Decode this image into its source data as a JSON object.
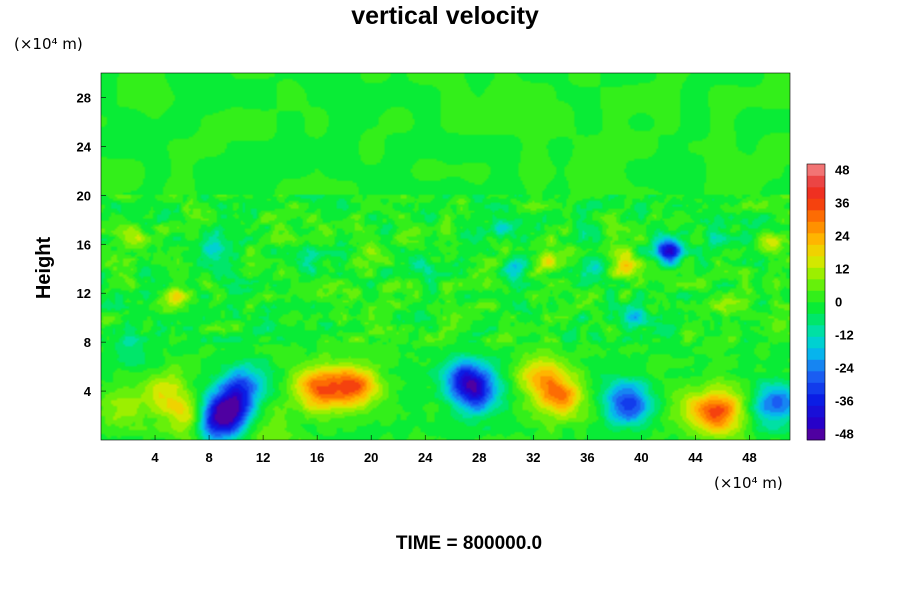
{
  "chart_data": {
    "type": "heatmap",
    "title": "vertical velocity",
    "xlabel": "",
    "ylabel": "Height",
    "x_unit": "(×10⁴ m)",
    "y_unit": "(×10⁴ m)",
    "footer": "TIME = 800000.0",
    "xlim": [
      0,
      51
    ],
    "ylim": [
      0,
      30
    ],
    "x_ticks": [
      4,
      8,
      12,
      16,
      20,
      24,
      28,
      32,
      36,
      40,
      44,
      48
    ],
    "y_ticks": [
      4,
      8,
      12,
      16,
      20,
      24,
      28
    ],
    "colorbar": {
      "min": -48,
      "max": 48,
      "step": 4,
      "tick_labels": [
        48,
        36,
        24,
        12,
        0,
        -12,
        -24,
        -36,
        -48
      ]
    },
    "background_value": 0,
    "features": [
      {
        "x": 16.0,
        "y": 4.2,
        "value": 26
      },
      {
        "x": 19.0,
        "y": 4.4,
        "value": 27
      },
      {
        "x": 17.5,
        "y": 4.5,
        "value": 12
      },
      {
        "x": 4.5,
        "y": 3.8,
        "value": 16
      },
      {
        "x": 6.5,
        "y": 1.8,
        "value": 18
      },
      {
        "x": 1.5,
        "y": 3.0,
        "value": 10
      },
      {
        "x": 9.5,
        "y": 2.5,
        "value": -36
      },
      {
        "x": 8.5,
        "y": 1.5,
        "value": -30
      },
      {
        "x": 10.5,
        "y": 4.5,
        "value": -24
      },
      {
        "x": 27.0,
        "y": 5.0,
        "value": -30
      },
      {
        "x": 28.0,
        "y": 3.8,
        "value": -26
      },
      {
        "x": 34.0,
        "y": 3.6,
        "value": 26
      },
      {
        "x": 32.5,
        "y": 5.2,
        "value": 18
      },
      {
        "x": 39.0,
        "y": 3.0,
        "value": -32
      },
      {
        "x": 46.0,
        "y": 2.3,
        "value": 25
      },
      {
        "x": 44.5,
        "y": 2.3,
        "value": 18
      },
      {
        "x": 50.0,
        "y": 3.0,
        "value": -26
      },
      {
        "x": 12.5,
        "y": 1.0,
        "value": 8
      },
      {
        "x": 42.0,
        "y": 15.5,
        "value": -38
      },
      {
        "x": 38.8,
        "y": 14.3,
        "value": 20
      },
      {
        "x": 5.5,
        "y": 11.5,
        "value": 14
      },
      {
        "x": 33.0,
        "y": 14.7,
        "value": 14
      },
      {
        "x": 49.5,
        "y": 16.0,
        "value": 12
      },
      {
        "x": 46.5,
        "y": 11.0,
        "value": 10
      },
      {
        "x": 30.5,
        "y": 14.0,
        "value": -18
      },
      {
        "x": 36.5,
        "y": 14.0,
        "value": -16
      },
      {
        "x": 39.5,
        "y": 10.0,
        "value": -16
      },
      {
        "x": 29.5,
        "y": 17.5,
        "value": -14
      },
      {
        "x": 8.5,
        "y": 16.0,
        "value": -14
      },
      {
        "x": 15.5,
        "y": 14.5,
        "value": -12
      },
      {
        "x": 45.5,
        "y": 17.0,
        "value": -12
      },
      {
        "x": 2.5,
        "y": 16.5,
        "value": 10
      },
      {
        "x": 24.0,
        "y": 14.0,
        "value": -10
      },
      {
        "x": 20.0,
        "y": 16.0,
        "value": 8
      },
      {
        "x": 35.0,
        "y": 9.0,
        "value": -8
      },
      {
        "x": 2.0,
        "y": 7.5,
        "value": -8
      }
    ]
  }
}
